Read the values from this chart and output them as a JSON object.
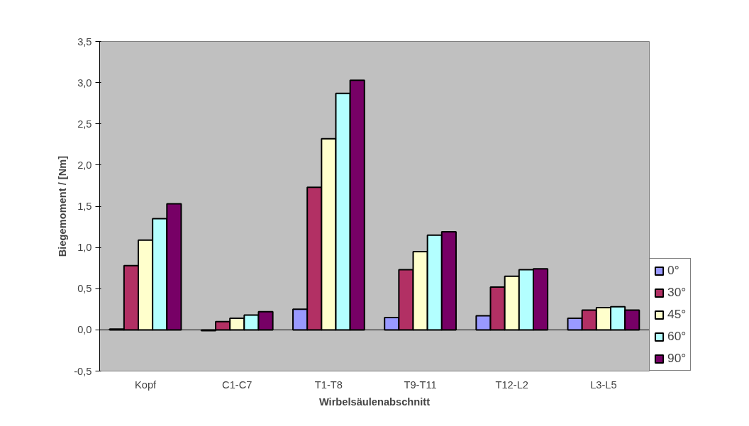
{
  "chart_data": {
    "type": "bar",
    "xlabel": "Wirbelsäulenabschnitt",
    "ylabel": "Biegemoment / [Nm]",
    "categories": [
      "Kopf",
      "C1-C7",
      "T1-T8",
      "T9-T11",
      "T12-L2",
      "L3-L5"
    ],
    "series": [
      {
        "name": "0°",
        "color": "#9999ff",
        "values": [
          0.01,
          -0.01,
          0.25,
          0.15,
          0.17,
          0.14
        ]
      },
      {
        "name": "30°",
        "color": "#b23064",
        "values": [
          0.78,
          0.1,
          1.73,
          0.73,
          0.52,
          0.24
        ]
      },
      {
        "name": "45°",
        "color": "#ffffcc",
        "values": [
          1.09,
          0.14,
          2.32,
          0.95,
          0.65,
          0.27
        ]
      },
      {
        "name": "60°",
        "color": "#b3ffff",
        "values": [
          1.35,
          0.18,
          2.87,
          1.15,
          0.73,
          0.28
        ]
      },
      {
        "name": "90°",
        "color": "#770066",
        "values": [
          1.53,
          0.22,
          3.03,
          1.19,
          0.74,
          0.24
        ]
      }
    ],
    "ylim": [
      -0.5,
      3.5
    ],
    "yticks": [
      {
        "value": -0.5,
        "label": "-0,5"
      },
      {
        "value": 0,
        "label": "0,0"
      },
      {
        "value": 0.5,
        "label": "0,5"
      },
      {
        "value": 1,
        "label": "1,0"
      },
      {
        "value": 1.5,
        "label": "1,5"
      },
      {
        "value": 2,
        "label": "2,0"
      },
      {
        "value": 2.5,
        "label": "2,5"
      },
      {
        "value": 3,
        "label": "3,0"
      },
      {
        "value": 3.5,
        "label": "3,5"
      }
    ],
    "ref_lines": [
      {
        "axis": "y",
        "value": 0,
        "color": "#000000"
      }
    ],
    "grid": false,
    "legend": "right"
  }
}
